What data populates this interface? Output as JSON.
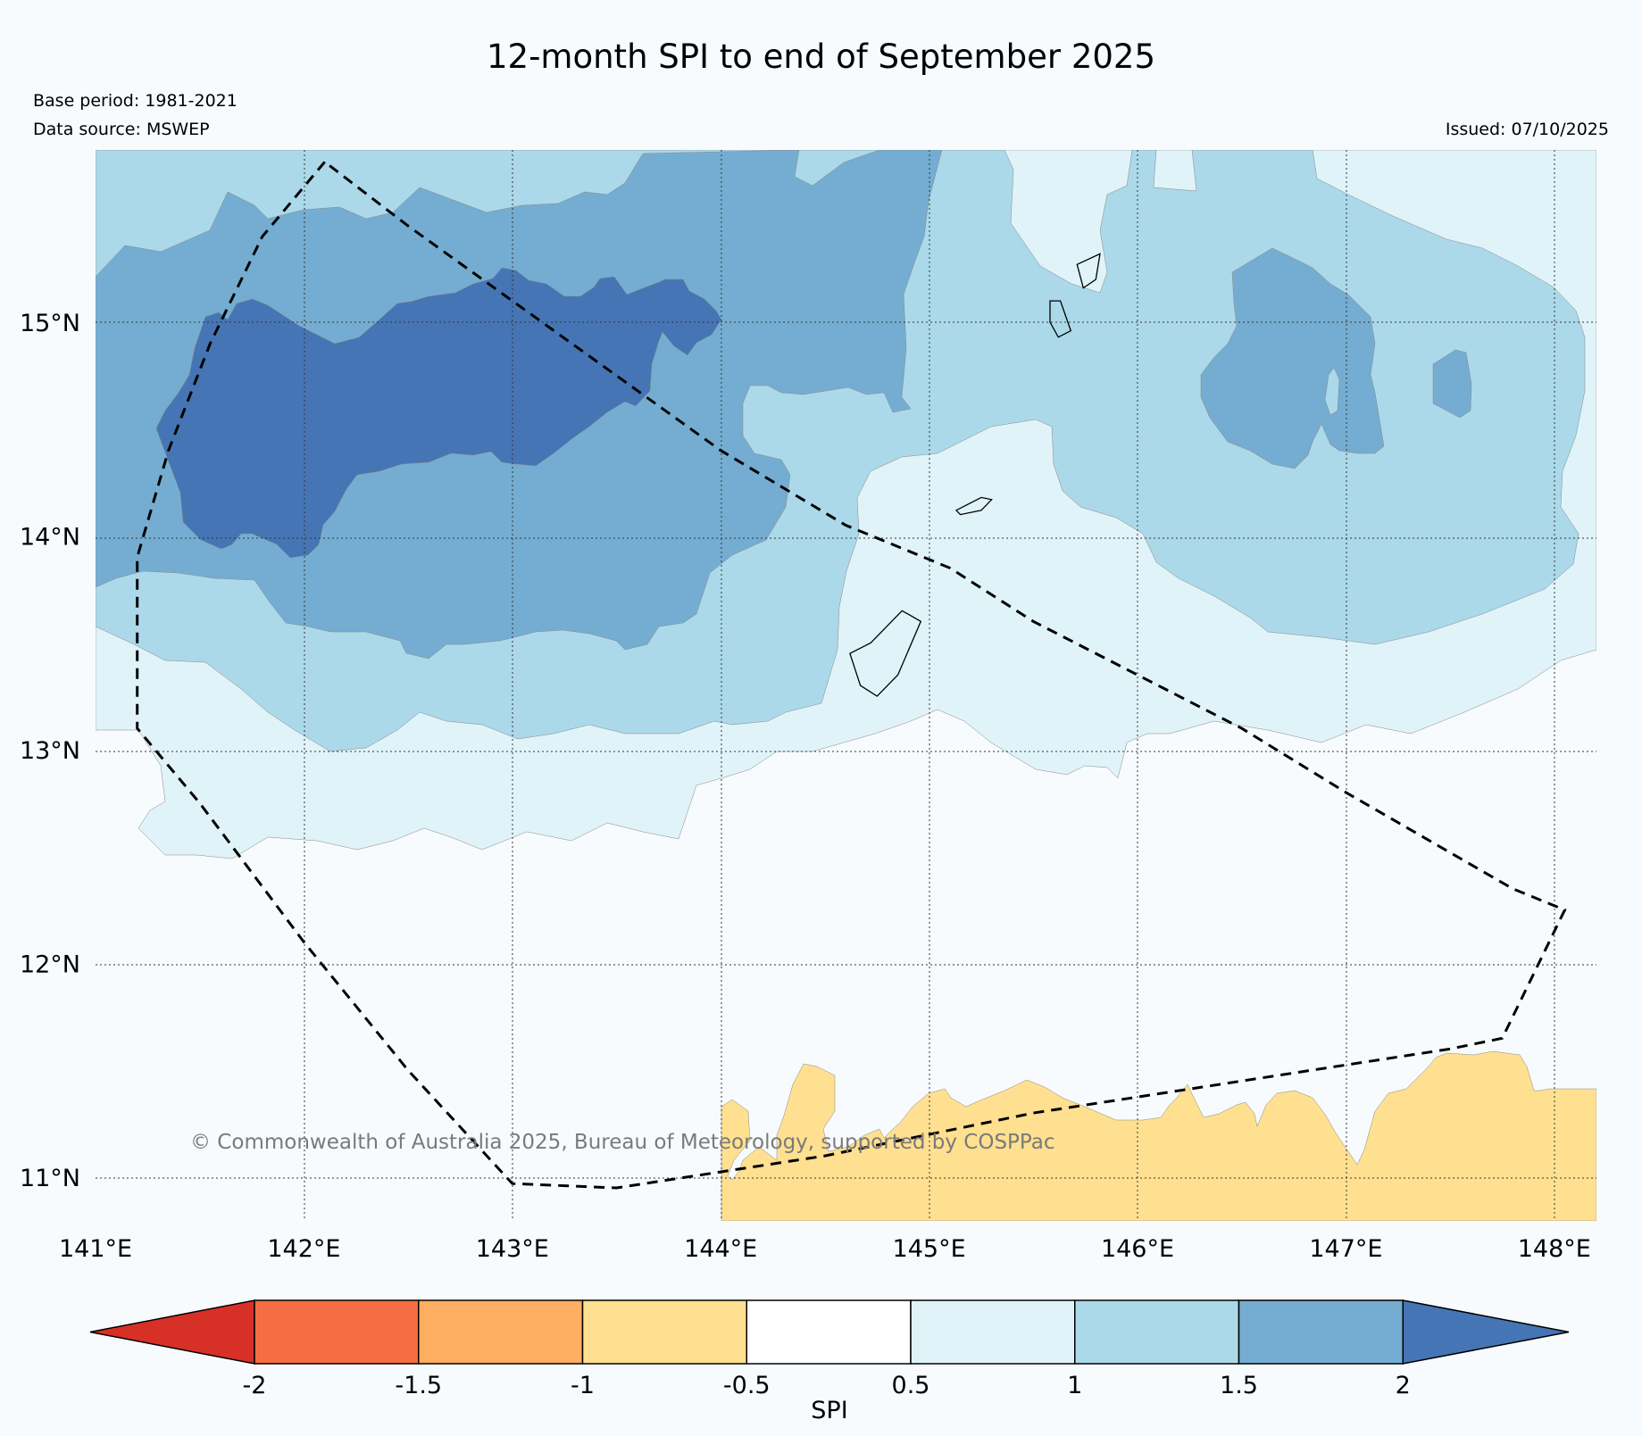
{
  "map": {
    "title": "12-month SPI to end of September 2025",
    "base_period": "Base period: 1981-2021",
    "data_source": "Data source: MSWEP",
    "issued": "Issued: 07/10/2025",
    "copyright": "© Commonwealth of Australia 2025, Bureau of Meteorology, supported by COSPPac",
    "lon_range": [
      141.0,
      148.2
    ],
    "lat_range": [
      10.8,
      15.82
    ],
    "lon_ticks": [
      141,
      142,
      143,
      144,
      145,
      146,
      147,
      148
    ],
    "lon_labels": [
      "141°E",
      "142°E",
      "143°E",
      "144°E",
      "145°E",
      "146°E",
      "147°E",
      "148°E"
    ],
    "lat_ticks": [
      15,
      14,
      13,
      12,
      11
    ],
    "lat_labels": [
      "15°N",
      "14°N",
      "13°N",
      "12°N",
      "11°N"
    ],
    "eez_boundary_lonlat": [
      [
        142.1,
        15.75
      ],
      [
        141.8,
        15.4
      ],
      [
        141.55,
        14.9
      ],
      [
        141.35,
        14.4
      ],
      [
        141.2,
        13.9
      ],
      [
        141.2,
        13.1
      ],
      [
        141.5,
        12.75
      ],
      [
        142.0,
        12.1
      ],
      [
        142.5,
        11.5
      ],
      [
        143.0,
        10.97
      ],
      [
        143.5,
        10.95
      ],
      [
        144.5,
        11.1
      ],
      [
        145.5,
        11.3
      ],
      [
        146.5,
        11.45
      ],
      [
        147.5,
        11.6
      ],
      [
        147.75,
        11.65
      ],
      [
        148.05,
        12.25
      ],
      [
        147.8,
        12.35
      ],
      [
        147.0,
        12.8
      ],
      [
        146.5,
        13.1
      ],
      [
        146.0,
        13.35
      ],
      [
        145.5,
        13.6
      ],
      [
        145.1,
        13.85
      ],
      [
        144.6,
        14.05
      ],
      [
        144.0,
        14.4
      ],
      [
        143.5,
        14.75
      ],
      [
        143.0,
        15.1
      ],
      [
        142.5,
        15.45
      ],
      [
        142.1,
        15.75
      ]
    ],
    "islands_lonlat": [
      [
        [
          144.62,
          13.45
        ],
        [
          144.72,
          13.5
        ],
        [
          144.87,
          13.65
        ],
        [
          144.96,
          13.6
        ],
        [
          144.85,
          13.35
        ],
        [
          144.75,
          13.25
        ],
        [
          144.67,
          13.3
        ]
      ],
      [
        [
          145.13,
          14.12
        ],
        [
          145.25,
          14.18
        ],
        [
          145.3,
          14.17
        ],
        [
          145.25,
          14.12
        ],
        [
          145.15,
          14.1
        ]
      ],
      [
        [
          145.58,
          15.1
        ],
        [
          145.63,
          15.1
        ],
        [
          145.68,
          14.96
        ],
        [
          145.62,
          14.93
        ],
        [
          145.58,
          15.0
        ]
      ],
      [
        [
          145.71,
          15.27
        ],
        [
          145.82,
          15.32
        ],
        [
          145.8,
          15.2
        ],
        [
          145.74,
          15.16
        ]
      ]
    ]
  },
  "legend": {
    "title": "SPI",
    "ticks": [
      "-2",
      "-1.5",
      "-1",
      "-0.5",
      "0.5",
      "1",
      "1.5",
      "2"
    ],
    "bins": [
      {
        "range": "< -2",
        "color": "#d73027"
      },
      {
        "range": "-2 to -1.5",
        "color": "#f46d43"
      },
      {
        "range": "-1.5 to -1",
        "color": "#fdae61"
      },
      {
        "range": "-1 to -0.5",
        "color": "#fee090"
      },
      {
        "range": "-0.5 to 0.5",
        "color": "#ffffff"
      },
      {
        "range": "0.5 to 1",
        "color": "#e0f3f8"
      },
      {
        "range": "1 to 1.5",
        "color": "#abd9e9"
      },
      {
        "range": "1.5 to 2",
        "color": "#74add1"
      },
      {
        "range": "> 2",
        "color": "#4575b4"
      }
    ]
  }
}
